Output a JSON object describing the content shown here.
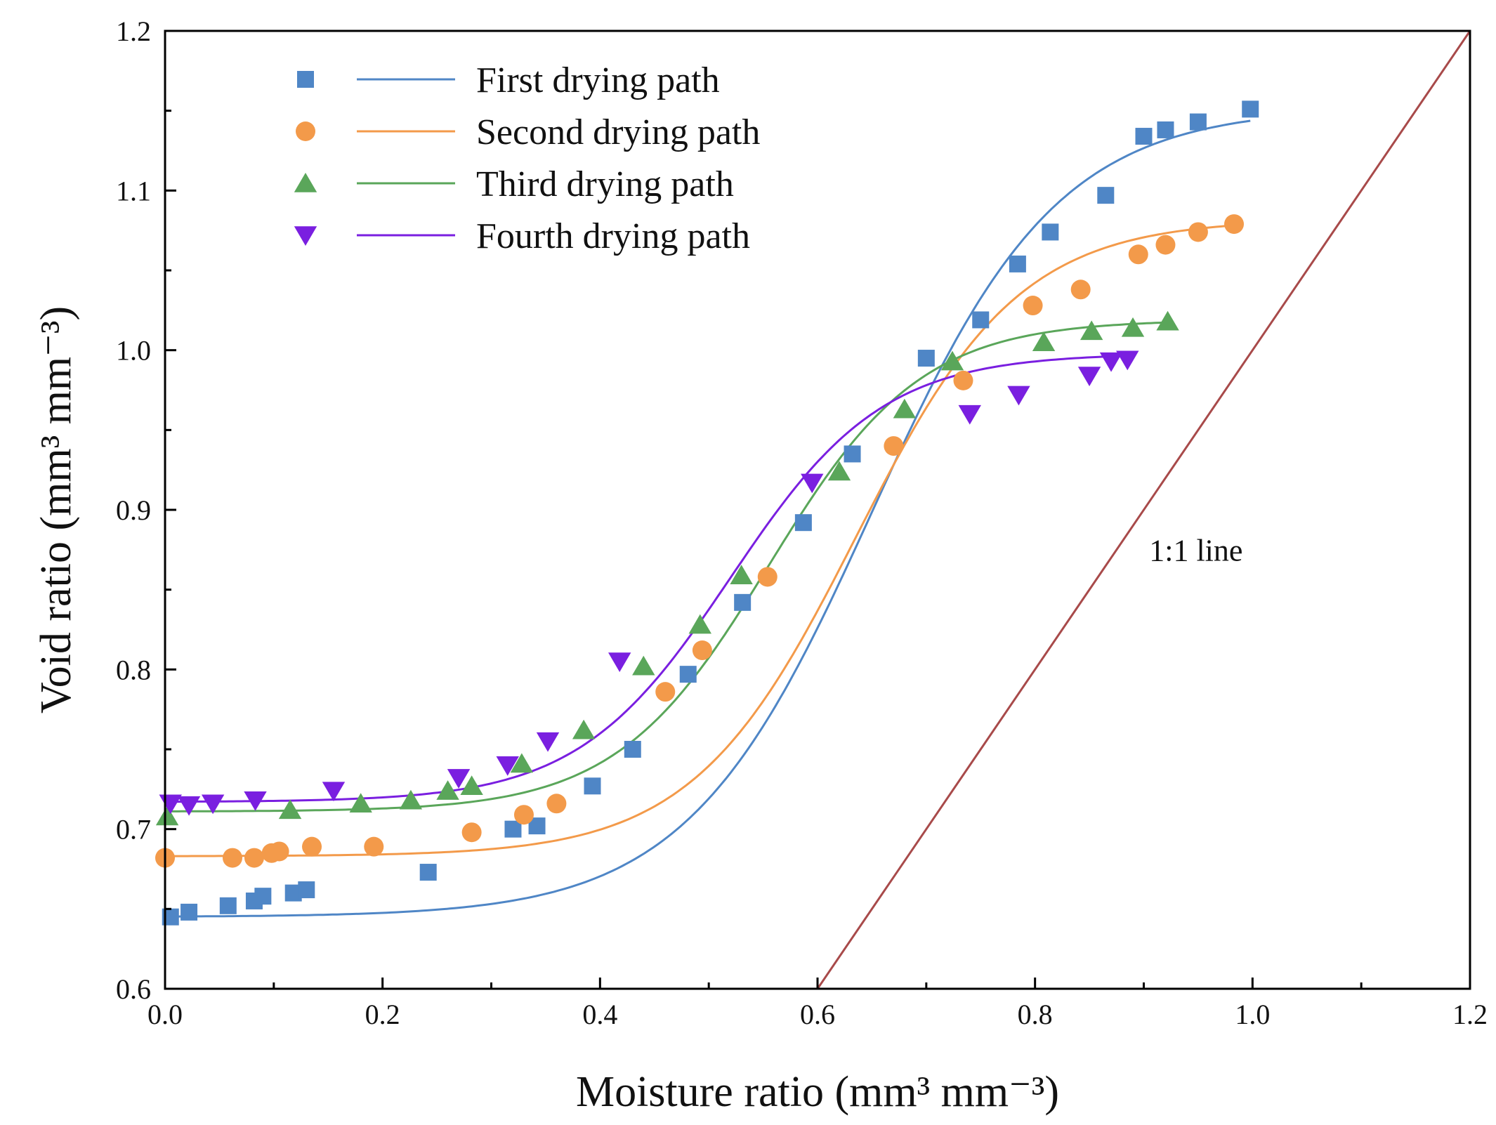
{
  "chart_data": {
    "type": "scatter",
    "title": "",
    "xlabel": "Moisture ratio (mm³ mm⁻³)",
    "ylabel": "Void ratio (mm³ mm⁻³)",
    "xlim": [
      0.0,
      1.2
    ],
    "ylim": [
      0.6,
      1.2
    ],
    "x_ticks": [
      "0.0",
      "0.2",
      "0.4",
      "0.6",
      "0.8",
      "1.0",
      "1.2"
    ],
    "y_ticks": [
      "0.6",
      "0.7",
      "0.8",
      "0.9",
      "1.0",
      "1.1",
      "1.2"
    ],
    "grid": false,
    "legend_position": "top-left",
    "series": [
      {
        "name": "First drying path",
        "marker": "square",
        "color": "#4f86c6",
        "points": [
          [
            0.005,
            0.645
          ],
          [
            0.022,
            0.648
          ],
          [
            0.058,
            0.652
          ],
          [
            0.082,
            0.655
          ],
          [
            0.09,
            0.658
          ],
          [
            0.118,
            0.66
          ],
          [
            0.13,
            0.662
          ],
          [
            0.242,
            0.673
          ],
          [
            0.32,
            0.7
          ],
          [
            0.342,
            0.702
          ],
          [
            0.393,
            0.727
          ],
          [
            0.43,
            0.75
          ],
          [
            0.481,
            0.797
          ],
          [
            0.531,
            0.842
          ],
          [
            0.587,
            0.892
          ],
          [
            0.632,
            0.935
          ],
          [
            0.7,
            0.995
          ],
          [
            0.75,
            1.019
          ],
          [
            0.784,
            1.054
          ],
          [
            0.814,
            1.074
          ],
          [
            0.865,
            1.097
          ],
          [
            0.9,
            1.134
          ],
          [
            0.92,
            1.138
          ],
          [
            0.95,
            1.143
          ],
          [
            0.998,
            1.151
          ]
        ],
        "fit": {
          "low": 0.645,
          "high": 1.152,
          "mid": 0.65,
          "width": 0.085
        }
      },
      {
        "name": "Second drying path",
        "marker": "circle",
        "color": "#f39a4a",
        "points": [
          [
            0.0,
            0.682
          ],
          [
            0.062,
            0.682
          ],
          [
            0.082,
            0.682
          ],
          [
            0.098,
            0.685
          ],
          [
            0.105,
            0.686
          ],
          [
            0.135,
            0.689
          ],
          [
            0.192,
            0.689
          ],
          [
            0.282,
            0.698
          ],
          [
            0.33,
            0.709
          ],
          [
            0.36,
            0.716
          ],
          [
            0.46,
            0.786
          ],
          [
            0.494,
            0.812
          ],
          [
            0.554,
            0.858
          ],
          [
            0.67,
            0.94
          ],
          [
            0.734,
            0.981
          ],
          [
            0.798,
            1.028
          ],
          [
            0.842,
            1.038
          ],
          [
            0.895,
            1.06
          ],
          [
            0.92,
            1.066
          ],
          [
            0.95,
            1.074
          ],
          [
            0.983,
            1.079
          ]
        ],
        "fit": {
          "low": 0.683,
          "high": 1.082,
          "mid": 0.635,
          "width": 0.075
        }
      },
      {
        "name": "Third drying path",
        "marker": "triangle-up",
        "color": "#5aa65a",
        "points": [
          [
            0.002,
            0.708
          ],
          [
            0.115,
            0.712
          ],
          [
            0.18,
            0.716
          ],
          [
            0.226,
            0.718
          ],
          [
            0.26,
            0.724
          ],
          [
            0.282,
            0.727
          ],
          [
            0.328,
            0.741
          ],
          [
            0.385,
            0.762
          ],
          [
            0.44,
            0.802
          ],
          [
            0.492,
            0.828
          ],
          [
            0.53,
            0.859
          ],
          [
            0.62,
            0.924
          ],
          [
            0.68,
            0.963
          ],
          [
            0.724,
            0.993
          ],
          [
            0.808,
            1.005
          ],
          [
            0.852,
            1.012
          ],
          [
            0.89,
            1.014
          ],
          [
            0.922,
            1.018
          ]
        ],
        "fit": {
          "low": 0.711,
          "high": 1.019,
          "mid": 0.555,
          "width": 0.07
        }
      },
      {
        "name": "Fourth drying path",
        "marker": "triangle-down",
        "color": "#7a1fe0",
        "points": [
          [
            0.005,
            0.716
          ],
          [
            0.022,
            0.715
          ],
          [
            0.044,
            0.716
          ],
          [
            0.083,
            0.718
          ],
          [
            0.155,
            0.724
          ],
          [
            0.27,
            0.732
          ],
          [
            0.315,
            0.74
          ],
          [
            0.352,
            0.755
          ],
          [
            0.418,
            0.805
          ],
          [
            0.595,
            0.917
          ],
          [
            0.74,
            0.96
          ],
          [
            0.785,
            0.972
          ],
          [
            0.85,
            0.984
          ],
          [
            0.87,
            0.993
          ],
          [
            0.885,
            0.994
          ]
        ],
        "fit": {
          "low": 0.717,
          "high": 0.998,
          "mid": 0.52,
          "width": 0.07
        }
      }
    ],
    "reference_line": {
      "label": "1:1 line",
      "color": "#a84a4a",
      "points": [
        [
          0.6,
          0.6
        ],
        [
          1.2,
          1.2
        ]
      ]
    }
  }
}
